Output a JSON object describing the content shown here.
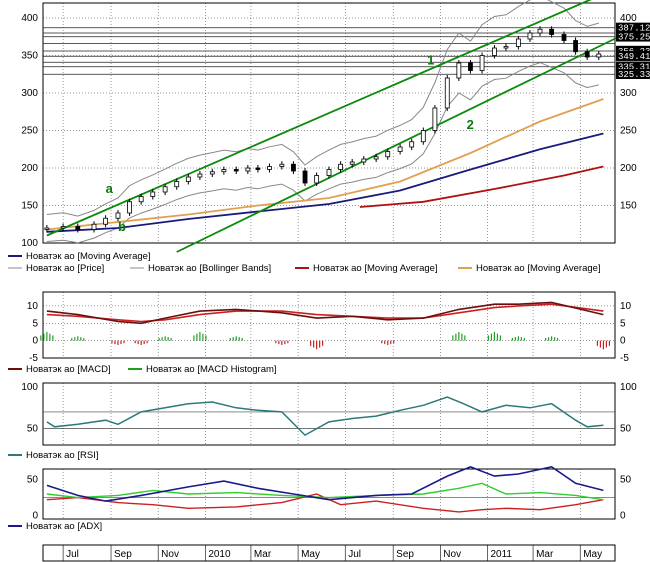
{
  "chart_data": [
    {
      "type": "candlestick",
      "panel": "price",
      "ylim": [
        100,
        420
      ],
      "y_ticks": [
        100,
        150,
        200,
        250,
        300,
        350,
        400
      ],
      "right_y_ticks": [
        150,
        200,
        250,
        300,
        400
      ],
      "price_labels": [
        "387.125",
        "375.250",
        "356.238",
        "349.410",
        "335.310",
        "325.330"
      ],
      "price_label_values": [
        387.125,
        375.25,
        356.238,
        349.41,
        335.31,
        325.33
      ],
      "horizontal_levels": [
        387,
        380,
        375,
        366,
        356,
        349,
        341,
        335,
        325
      ],
      "annotations": [
        {
          "text": "a",
          "x": "2009-08-25",
          "y": 167
        },
        {
          "text": "b",
          "x": "2009-09-10",
          "y": 116
        },
        {
          "text": "1",
          "x": "2010-10-15",
          "y": 338
        },
        {
          "text": "2",
          "x": "2010-12-05",
          "y": 252
        }
      ],
      "trend_lines": [
        {
          "name": "1",
          "from": [
            "2009-06-10",
            110
          ],
          "to": [
            "2011-05-31",
            432
          ]
        },
        {
          "name": "2",
          "from": [
            "2009-11-25",
            88
          ],
          "to": [
            "2011-06-30",
            380
          ]
        }
      ],
      "price_close": [
        [
          "2009-06-10",
          120
        ],
        [
          "2009-07-01",
          122
        ],
        [
          "2009-07-20",
          118
        ],
        [
          "2009-08-10",
          125
        ],
        [
          "2009-08-25",
          133
        ],
        [
          "2009-09-10",
          140
        ],
        [
          "2009-09-25",
          155
        ],
        [
          "2009-10-10",
          162
        ],
        [
          "2009-10-25",
          168
        ],
        [
          "2009-11-10",
          175
        ],
        [
          "2009-11-25",
          182
        ],
        [
          "2009-12-10",
          188
        ],
        [
          "2009-12-25",
          192
        ],
        [
          "2010-01-10",
          195
        ],
        [
          "2010-01-25",
          198
        ],
        [
          "2010-02-10",
          196
        ],
        [
          "2010-02-25",
          200
        ],
        [
          "2010-03-10",
          198
        ],
        [
          "2010-03-25",
          202
        ],
        [
          "2010-04-10",
          205
        ],
        [
          "2010-04-25",
          196
        ],
        [
          "2010-05-10",
          180
        ],
        [
          "2010-05-25",
          190
        ],
        [
          "2010-06-10",
          198
        ],
        [
          "2010-06-25",
          205
        ],
        [
          "2010-07-10",
          208
        ],
        [
          "2010-07-25",
          212
        ],
        [
          "2010-08-10",
          215
        ],
        [
          "2010-08-25",
          222
        ],
        [
          "2010-09-10",
          228
        ],
        [
          "2010-09-25",
          235
        ],
        [
          "2010-10-10",
          250
        ],
        [
          "2010-10-25",
          280
        ],
        [
          "2010-11-10",
          320
        ],
        [
          "2010-11-25",
          340
        ],
        [
          "2010-12-10",
          330
        ],
        [
          "2010-12-25",
          350
        ],
        [
          "2011-01-10",
          360
        ],
        [
          "2011-01-25",
          362
        ],
        [
          "2011-02-10",
          372
        ],
        [
          "2011-02-25",
          380
        ],
        [
          "2011-03-10",
          385
        ],
        [
          "2011-03-25",
          378
        ],
        [
          "2011-04-10",
          370
        ],
        [
          "2011-04-25",
          355
        ],
        [
          "2011-05-10",
          348
        ],
        [
          "2011-05-25",
          352
        ]
      ],
      "series": [
        {
          "name": "Новатэк ао [Moving Average]",
          "color": "#1a1a7a",
          "points": [
            [
              "2009-06-10",
              115
            ],
            [
              "2009-09-10",
              120
            ],
            [
              "2009-12-10",
              132
            ],
            [
              "2010-03-10",
              142
            ],
            [
              "2010-06-10",
              152
            ],
            [
              "2010-09-10",
              170
            ],
            [
              "2010-12-10",
              198
            ],
            [
              "2011-03-10",
              225
            ],
            [
              "2011-05-31",
              246
            ]
          ]
        },
        {
          "name": "Новатэк ао [Price]",
          "color": "#888888"
        },
        {
          "name": "Новатэк ао [Bollinger Bands]",
          "color": "#888888"
        },
        {
          "name": "Новатэк ао [Moving Average]",
          "color": "#b01010",
          "points": [
            [
              "2010-07-20",
              148
            ],
            [
              "2010-10-10",
              155
            ],
            [
              "2011-01-10",
              172
            ],
            [
              "2011-04-10",
              190
            ],
            [
              "2011-05-31",
              202
            ]
          ]
        },
        {
          "name": "Новатэк ао [Moving Average]",
          "color": "#e0a050",
          "points": [
            [
              "2009-06-10",
              118
            ],
            [
              "2009-09-10",
              128
            ],
            [
              "2009-12-10",
              138
            ],
            [
              "2010-03-10",
              150
            ],
            [
              "2010-06-10",
              160
            ],
            [
              "2010-09-10",
              182
            ],
            [
              "2010-12-10",
              220
            ],
            [
              "2011-03-10",
              262
            ],
            [
              "2011-05-31",
              292
            ]
          ]
        }
      ]
    },
    {
      "type": "line",
      "panel": "macd",
      "ylim": [
        -5,
        14
      ],
      "y_ticks": [
        10,
        5,
        0,
        -5
      ],
      "series": [
        {
          "name": "Новатэк ао [MACD]",
          "color": "#6a0f0f",
          "points": [
            [
              "2009-06-10",
              8.5
            ],
            [
              "2009-07-20",
              7.5
            ],
            [
              "2009-09-10",
              5.5
            ],
            [
              "2009-10-10",
              5
            ],
            [
              "2009-11-10",
              6.5
            ],
            [
              "2009-12-25",
              8.5
            ],
            [
              "2010-02-10",
              9
            ],
            [
              "2010-04-10",
              8
            ],
            [
              "2010-05-25",
              6.5
            ],
            [
              "2010-07-10",
              7
            ],
            [
              "2010-08-25",
              6
            ],
            [
              "2010-10-10",
              6.5
            ],
            [
              "2010-11-25",
              9
            ],
            [
              "2011-01-10",
              10.5
            ],
            [
              "2011-02-10",
              10.5
            ],
            [
              "2011-03-25",
              11
            ],
            [
              "2011-05-31",
              7.5
            ]
          ]
        },
        {
          "name": "Новатэк ао [MACD Histogram]",
          "color": "#20a020"
        }
      ],
      "signal_color": "#cc2020",
      "signal": [
        [
          "2009-06-10",
          7.5
        ],
        [
          "2009-07-20",
          7
        ],
        [
          "2009-09-10",
          6
        ],
        [
          "2009-10-10",
          5.5
        ],
        [
          "2009-11-10",
          6
        ],
        [
          "2009-12-25",
          7.5
        ],
        [
          "2010-02-10",
          8.5
        ],
        [
          "2010-04-10",
          8.5
        ],
        [
          "2010-05-25",
          7.5
        ],
        [
          "2010-07-10",
          7
        ],
        [
          "2010-08-25",
          6.5
        ],
        [
          "2010-10-10",
          6.5
        ],
        [
          "2010-11-25",
          8
        ],
        [
          "2011-01-10",
          9.5
        ],
        [
          "2011-02-10",
          10
        ],
        [
          "2011-03-25",
          10.5
        ],
        [
          "2011-05-31",
          8.5
        ]
      ]
    },
    {
      "type": "line",
      "panel": "rsi",
      "ylim": [
        30,
        105
      ],
      "y_ticks": [
        100,
        50
      ],
      "reference_lines": [
        70,
        50
      ],
      "series": [
        {
          "name": "Новатэк ао [RSI]",
          "color": "#2a7a7a",
          "points": [
            [
              "2009-06-10",
              58
            ],
            [
              "2009-06-20",
              52
            ],
            [
              "2009-07-20",
              55
            ],
            [
              "2009-08-25",
              60
            ],
            [
              "2009-09-10",
              55
            ],
            [
              "2009-10-10",
              70
            ],
            [
              "2009-11-10",
              75
            ],
            [
              "2009-12-10",
              80
            ],
            [
              "2010-01-10",
              82
            ],
            [
              "2010-02-10",
              75
            ],
            [
              "2010-03-10",
              72
            ],
            [
              "2010-04-10",
              70
            ],
            [
              "2010-05-10",
              42
            ],
            [
              "2010-06-10",
              58
            ],
            [
              "2010-07-10",
              62
            ],
            [
              "2010-08-10",
              65
            ],
            [
              "2010-09-10",
              72
            ],
            [
              "2010-10-10",
              78
            ],
            [
              "2010-11-10",
              88
            ],
            [
              "2010-12-01",
              80
            ],
            [
              "2010-12-25",
              70
            ],
            [
              "2011-01-25",
              78
            ],
            [
              "2011-02-25",
              75
            ],
            [
              "2011-03-25",
              80
            ],
            [
              "2011-04-25",
              60
            ],
            [
              "2011-05-10",
              52
            ],
            [
              "2011-05-31",
              54
            ]
          ]
        }
      ]
    },
    {
      "type": "line",
      "panel": "adx",
      "ylim": [
        -5,
        65
      ],
      "y_ticks": [
        50,
        0
      ],
      "reference_lines": [
        25
      ],
      "series": [
        {
          "name": "Новатэк ао [ADX]",
          "color": "#1a1a8a",
          "points": [
            [
              "2009-06-10",
              42
            ],
            [
              "2009-07-20",
              28
            ],
            [
              "2009-08-25",
              20
            ],
            [
              "2009-10-10",
              28
            ],
            [
              "2009-12-10",
              40
            ],
            [
              "2010-01-25",
              48
            ],
            [
              "2010-03-10",
              38
            ],
            [
              "2010-04-25",
              30
            ],
            [
              "2010-06-10",
              22
            ],
            [
              "2010-08-10",
              28
            ],
            [
              "2010-09-25",
              30
            ],
            [
              "2010-11-10",
              55
            ],
            [
              "2010-12-10",
              68
            ],
            [
              "2011-01-10",
              55
            ],
            [
              "2011-02-10",
              58
            ],
            [
              "2011-03-25",
              68
            ],
            [
              "2011-04-25",
              45
            ],
            [
              "2011-05-31",
              35
            ]
          ]
        }
      ],
      "plus_di_color": "#30cc30",
      "plus_di": [
        [
          "2009-06-10",
          30
        ],
        [
          "2009-07-20",
          25
        ],
        [
          "2009-09-10",
          28
        ],
        [
          "2009-10-25",
          35
        ],
        [
          "2009-12-10",
          30
        ],
        [
          "2010-02-10",
          32
        ],
        [
          "2010-04-10",
          28
        ],
        [
          "2010-06-10",
          25
        ],
        [
          "2010-08-10",
          28
        ],
        [
          "2010-10-10",
          30
        ],
        [
          "2010-11-25",
          38
        ],
        [
          "2010-12-25",
          45
        ],
        [
          "2011-01-25",
          30
        ],
        [
          "2011-03-10",
          32
        ],
        [
          "2011-04-25",
          28
        ],
        [
          "2011-05-31",
          22
        ]
      ],
      "minus_di_color": "#cc2020",
      "minus_di": [
        [
          "2009-06-10",
          22
        ],
        [
          "2009-07-20",
          25
        ],
        [
          "2009-09-10",
          18
        ],
        [
          "2009-10-25",
          15
        ],
        [
          "2009-12-10",
          10
        ],
        [
          "2010-02-10",
          12
        ],
        [
          "2010-04-10",
          18
        ],
        [
          "2010-05-25",
          30
        ],
        [
          "2010-06-25",
          15
        ],
        [
          "2010-08-10",
          20
        ],
        [
          "2010-10-10",
          10
        ],
        [
          "2010-11-25",
          5
        ],
        [
          "2010-12-25",
          8
        ],
        [
          "2011-01-25",
          10
        ],
        [
          "2011-03-10",
          8
        ],
        [
          "2011-04-25",
          15
        ],
        [
          "2011-05-31",
          22
        ]
      ]
    }
  ],
  "x_axis": {
    "labels": [
      "Jul",
      "Sep",
      "Nov",
      "2010",
      "Mar",
      "May",
      "Jul",
      "Sep",
      "Nov",
      "2011",
      "Mar",
      "May"
    ],
    "label_dates": [
      "2009-07-01",
      "2009-09-01",
      "2009-11-01",
      "2010-01-01",
      "2010-03-01",
      "2010-05-01",
      "2010-07-01",
      "2010-09-01",
      "2010-11-01",
      "2011-01-01",
      "2011-03-01",
      "2011-05-01"
    ],
    "range": [
      "2009-06-05",
      "2011-06-15"
    ]
  },
  "legends": {
    "price_row1": [
      "Новатэк ао [Moving Average]"
    ],
    "price_row2": [
      "Новатэк ао [Price]",
      "Новатэк ао [Bollinger Bands]",
      "Новатэк ао [Moving Average]",
      "Новатэк ао [Moving Average]"
    ],
    "macd": [
      "Новатэк ао [MACD]",
      "Новатэк ао [MACD Histogram]"
    ],
    "rsi": [
      "Новатэк ао [RSI]"
    ],
    "adx": [
      "Новатэк ао [ADX]"
    ]
  }
}
